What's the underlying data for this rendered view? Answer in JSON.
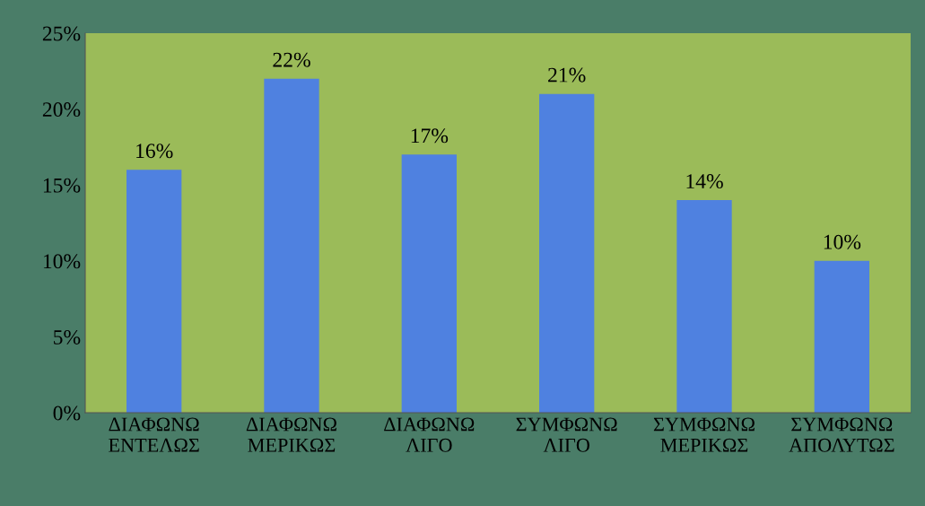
{
  "chart_data": {
    "type": "bar",
    "categories": [
      "ΔΙΑΦΩΝΩ\nΕΝΤΕΛΩΣ",
      "ΔΙΑΦΩΝΩ\nΜΕΡΙΚΩΣ",
      "ΔΙΑΦΩΝΩ\nΛΙΓΟ",
      "ΣΥΜΦΩΝΩ\nΛΙΓΟ",
      "ΣΥΜΦΩΝΩ\nΜΕΡΙΚΩΣ",
      "ΣΥΜΦΩΝΩ\nΑΠΟΛΥΤΩΣ"
    ],
    "values": [
      16,
      22,
      17,
      21,
      14,
      10
    ],
    "value_labels": [
      "16%",
      "22%",
      "17%",
      "21%",
      "14%",
      "10%"
    ],
    "color": "#4f81e0",
    "ylim": [
      0,
      25
    ],
    "yticks": [
      {
        "value": 0,
        "label": "0%"
      },
      {
        "value": 5,
        "label": "5%"
      },
      {
        "value": 10,
        "label": "10%"
      },
      {
        "value": 15,
        "label": "15%"
      },
      {
        "value": 20,
        "label": "20%"
      },
      {
        "value": 25,
        "label": "25%"
      }
    ],
    "grid": false,
    "legend": false
  }
}
